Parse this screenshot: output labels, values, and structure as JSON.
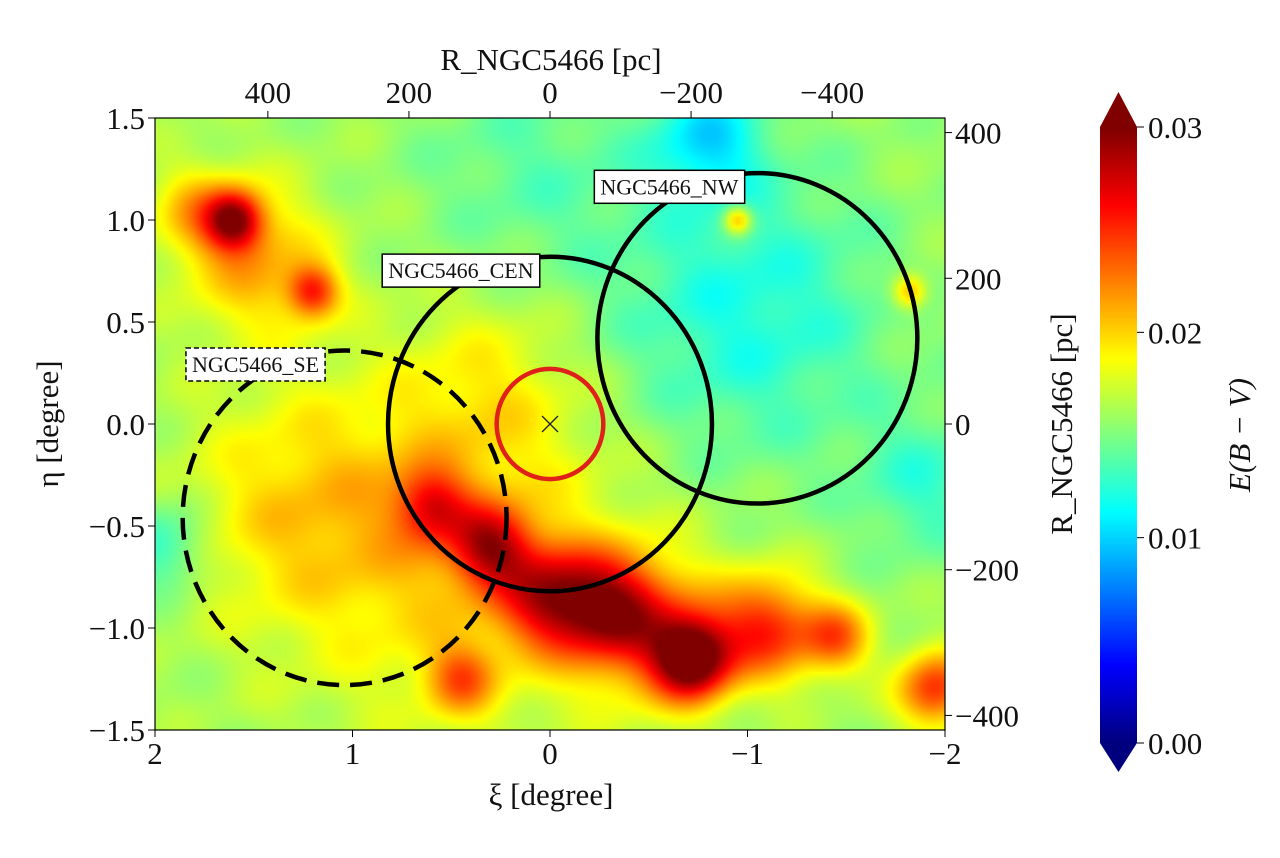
{
  "chart_data": {
    "type": "heatmap",
    "title": "",
    "xlabel": "ξ [degree]",
    "ylabel": "η [degree]",
    "top_xlabel": "R_NGC5466 [pc]",
    "right_ylabel": "R_NGC5466 [pc]",
    "colorbar_label": "E(B − V)",
    "xlim": [
      2,
      -2
    ],
    "ylim": [
      -1.5,
      1.5
    ],
    "x_ticks": [
      2,
      1,
      0,
      -1,
      -2
    ],
    "x_tick_labels": [
      "2",
      "1",
      "0",
      "−1",
      "−2"
    ],
    "y_ticks": [
      -1.5,
      -1.0,
      -0.5,
      0.0,
      0.5,
      1.0,
      1.5
    ],
    "y_tick_labels": [
      "−1.5",
      "−1.0",
      "−0.5",
      "0.0",
      "0.5",
      "1.0",
      "1.5"
    ],
    "top_ticks_pc": [
      400,
      200,
      0,
      -200,
      -400
    ],
    "top_tick_labels": [
      "400",
      "200",
      "0",
      "−200",
      "−400"
    ],
    "right_ticks_pc": [
      400,
      200,
      0,
      -200,
      -400
    ],
    "right_tick_labels": [
      "400",
      "200",
      "0",
      "−200",
      "−400"
    ],
    "pc_per_degree": 280,
    "colorbar": {
      "min": 0.0,
      "max": 0.03,
      "ticks": [
        0.0,
        0.01,
        0.02,
        0.03
      ],
      "tick_labels": [
        "0.00",
        "0.01",
        "0.02",
        "0.03"
      ],
      "colormap": "jet"
    },
    "base_value": 0.016,
    "field_blobs": [
      {
        "xi": 1.6,
        "eta": 1.0,
        "amp": 0.011,
        "sigma": 0.1
      },
      {
        "xi": 1.2,
        "eta": 0.65,
        "amp": 0.008,
        "sigma": 0.09
      },
      {
        "xi": 1.5,
        "eta": 0.8,
        "amp": 0.005,
        "sigma": 0.25
      },
      {
        "xi": 1.8,
        "eta": 1.05,
        "amp": 0.004,
        "sigma": 0.15
      },
      {
        "xi": 0.6,
        "eta": -0.4,
        "amp": 0.007,
        "sigma": 0.13
      },
      {
        "xi": 0.3,
        "eta": -0.6,
        "amp": 0.009,
        "sigma": 0.14
      },
      {
        "xi": 0.0,
        "eta": -0.85,
        "amp": 0.009,
        "sigma": 0.18
      },
      {
        "xi": -0.3,
        "eta": -0.9,
        "amp": 0.008,
        "sigma": 0.18
      },
      {
        "xi": -0.72,
        "eta": -1.15,
        "amp": 0.014,
        "sigma": 0.14
      },
      {
        "xi": -1.1,
        "eta": -1.0,
        "amp": 0.009,
        "sigma": 0.18
      },
      {
        "xi": -1.45,
        "eta": -1.05,
        "amp": 0.007,
        "sigma": 0.12
      },
      {
        "xi": -0.5,
        "eta": -1.0,
        "amp": 0.006,
        "sigma": 0.25
      },
      {
        "xi": 0.45,
        "eta": -1.25,
        "amp": 0.006,
        "sigma": 0.12
      },
      {
        "xi": -1.95,
        "eta": -1.3,
        "amp": 0.009,
        "sigma": 0.13
      },
      {
        "xi": -0.95,
        "eta": 1.0,
        "amp": 0.007,
        "sigma": 0.05
      },
      {
        "xi": -1.82,
        "eta": 0.65,
        "amp": 0.006,
        "sigma": 0.06
      },
      {
        "xi": 0.5,
        "eta": -0.6,
        "amp": 0.004,
        "sigma": 0.6
      },
      {
        "xi": 1.3,
        "eta": -0.4,
        "amp": 0.003,
        "sigma": 0.4
      },
      {
        "xi": 0.3,
        "eta": 0.2,
        "amp": 0.002,
        "sigma": 0.3
      },
      {
        "xi": -1.0,
        "eta": 0.55,
        "amp": -0.004,
        "sigma": 0.5
      },
      {
        "xi": -0.8,
        "eta": 1.4,
        "amp": -0.005,
        "sigma": 0.2
      },
      {
        "xi": 0.1,
        "eta": 1.25,
        "amp": -0.002,
        "sigma": 0.4
      },
      {
        "xi": 1.95,
        "eta": -0.6,
        "amp": -0.004,
        "sigma": 0.15
      },
      {
        "xi": -1.9,
        "eta": -0.3,
        "amp": -0.003,
        "sigma": 0.25
      }
    ],
    "regions": [
      {
        "name": "NGC5466_CEN",
        "xi": 0.0,
        "eta": 0.0,
        "radius_deg": 0.82,
        "style": "solid",
        "color": "#000000"
      },
      {
        "name": "NGC5466_NW",
        "xi": -1.05,
        "eta": 0.42,
        "radius_deg": 0.81,
        "style": "solid",
        "color": "#000000"
      },
      {
        "name": "NGC5466_SE",
        "xi": 1.04,
        "eta": -0.46,
        "radius_deg": 0.82,
        "style": "dashed",
        "color": "#000000"
      },
      {
        "name": "",
        "xi": 0.0,
        "eta": 0.0,
        "radius_deg": 0.27,
        "style": "solid",
        "color": "#e0201a"
      }
    ],
    "center_marker": {
      "xi": 0.0,
      "eta": 0.0,
      "symbol": "x"
    }
  }
}
